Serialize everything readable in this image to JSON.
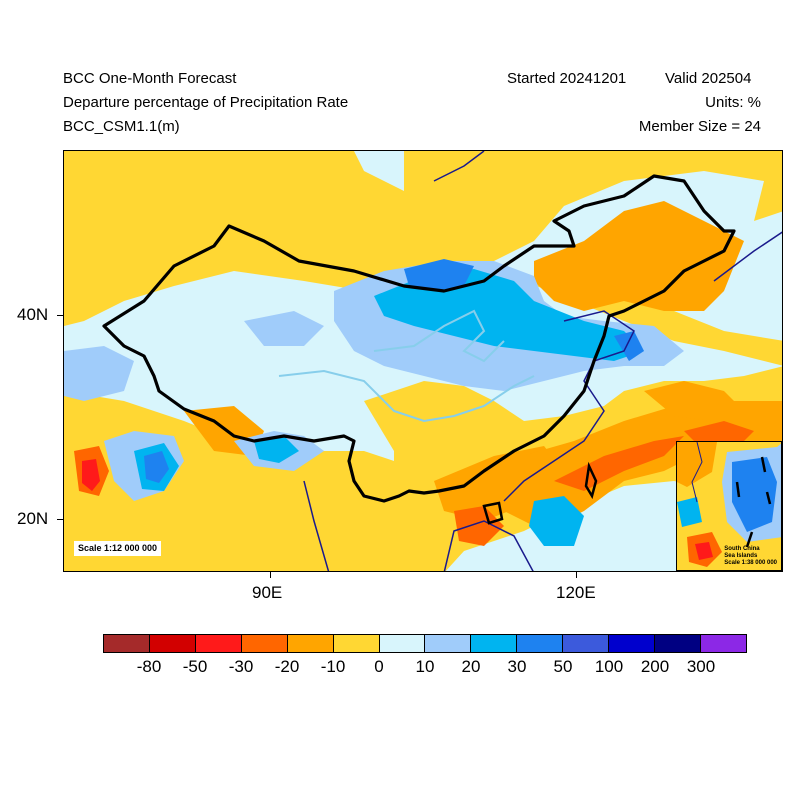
{
  "header": {
    "title": "BCC One-Month Forecast",
    "variable": "Departure percentage of Precipitation Rate",
    "model": "BCC_CSM1.1(m)",
    "started": "Started 20241201",
    "valid": "Valid 202504",
    "units": "Units: %",
    "member_size": "Member Size = 24"
  },
  "axes": {
    "lat_labels": [
      "40N",
      "20N"
    ],
    "lon_labels": [
      "90E",
      "120E"
    ]
  },
  "scale_text": "Scale 1:12 000 000",
  "inset": {
    "label_line1": "South China",
    "label_line2": "Sea Islands",
    "label_line3": "Scale 1:38 000 000"
  },
  "colorbar": {
    "colors": [
      "#a52a2a",
      "#d20000",
      "#ff1a1a",
      "#ff6600",
      "#ffa500",
      "#ffd733",
      "#d8f5fc",
      "#a0ccfa",
      "#00b4f0",
      "#1e82f0",
      "#3c5adc",
      "#0000cd",
      "#000082",
      "#8c28e6"
    ],
    "labels": [
      "-80",
      "-50",
      "-30",
      "-20",
      "-10",
      "0",
      "10",
      "20",
      "30",
      "50",
      "100",
      "200",
      "300"
    ]
  },
  "map_colors": {
    "dry_yellow": "#ffd733",
    "dry_orange": "#ffa500",
    "dry_deep": "#ff6600",
    "dry_red": "#ff1a1a",
    "wet_light": "#d8f5fc",
    "wet_pale": "#a0ccfa",
    "wet_cyan": "#00b4f0",
    "wet_blue": "#1e82f0",
    "border": "#000000",
    "coast": "#1a1a8c",
    "river": "#87ceeb"
  }
}
